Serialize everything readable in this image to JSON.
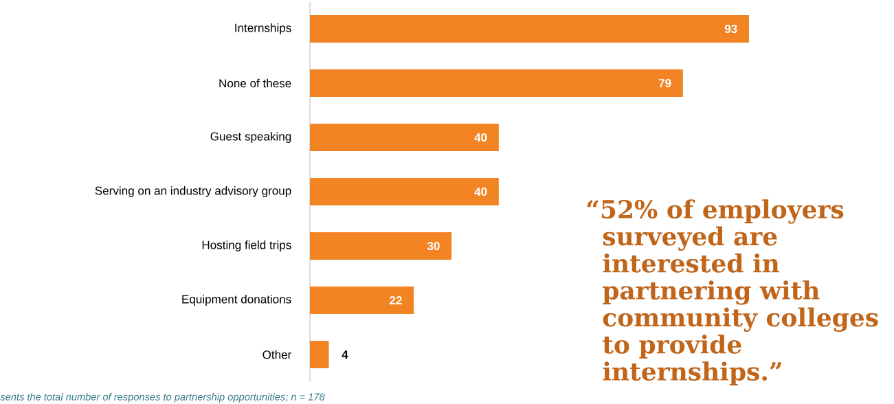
{
  "chart_data": {
    "type": "bar",
    "orientation": "horizontal",
    "categories": [
      "Internships",
      "None of these",
      "Guest speaking",
      "Serving on an industry advisory group",
      "Hosting field trips",
      "Equipment donations",
      "Other"
    ],
    "values": [
      93,
      79,
      40,
      40,
      30,
      22,
      4
    ],
    "color": "#f28424",
    "data_labels": true,
    "annotations": [
      "“52% of employers surveyed are interested in partnering with community colleges to provide internships.”",
      "sents the total number of responses to partnership opportunities; n = 178"
    ]
  }
}
